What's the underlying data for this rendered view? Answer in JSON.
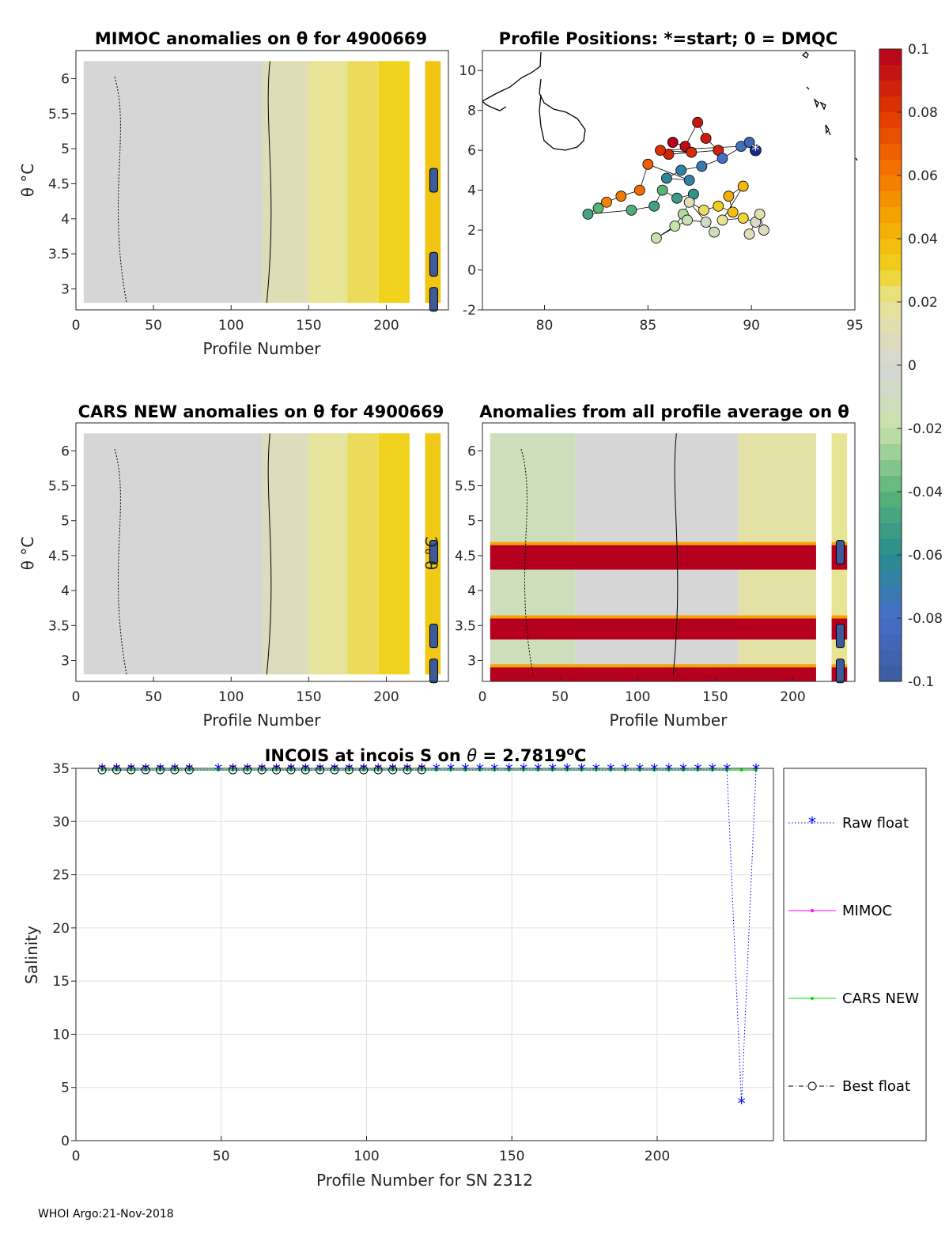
{
  "footer": "WHOI Argo:21-Nov-2018",
  "panels": {
    "mimoc": {
      "title": "MIMOC anomalies on θ  for 4900669",
      "xlabel": "Profile Number",
      "ylabel": "θ °C",
      "xticks": [
        "0",
        "50",
        "100",
        "150",
        "200"
      ],
      "yticks": [
        "6",
        "5.5",
        "5",
        "4.5",
        "4",
        "3.5",
        "3"
      ]
    },
    "positions": {
      "title": "Profile Positions: *=start; 0 = DMQC",
      "xticks": [
        "80",
        "85",
        "90",
        "95"
      ],
      "yticks": [
        "10",
        "8",
        "6",
        "4",
        "2",
        "0",
        "-2"
      ]
    },
    "cars": {
      "title": "CARS NEW anomalies on θ for 4900669",
      "xlabel": "Profile Number",
      "ylabel": "θ °C",
      "xticks": [
        "0",
        "50",
        "100",
        "150",
        "200"
      ],
      "yticks": [
        "6",
        "5.5",
        "5",
        "4.5",
        "4",
        "3.5",
        "3"
      ]
    },
    "allavg": {
      "title": "Anomalies from all profile average on θ",
      "xlabel": "Profile Number",
      "xticks": [
        "0",
        "50",
        "100",
        "150",
        "200"
      ],
      "yticks": [
        "6",
        "5.5",
        "5",
        "4.5",
        "4",
        "3.5",
        "3"
      ]
    }
  },
  "colorbar": {
    "ticks": [
      "0.1",
      "0.08",
      "0.06",
      "0.04",
      "0.02",
      "0",
      "-0.02",
      "-0.04",
      "-0.06",
      "-0.08",
      "-0.1"
    ]
  },
  "chart_data": [
    {
      "type": "heatmap",
      "title": "MIMOC anomalies on θ  for 4900669",
      "xlabel": "Profile Number",
      "ylabel": "θ °C",
      "xlim": [
        0,
        240
      ],
      "ylim": [
        2.7,
        6.4
      ],
      "profile_bands": [
        {
          "x0": 5,
          "x1": 120,
          "anomaly": 0.0
        },
        {
          "x0": 120,
          "x1": 150,
          "anomaly": 0.01
        },
        {
          "x0": 150,
          "x1": 175,
          "anomaly": 0.02
        },
        {
          "x0": 175,
          "x1": 195,
          "anomaly": 0.025
        },
        {
          "x0": 195,
          "x1": 215,
          "anomaly": 0.03
        },
        {
          "x0": 225,
          "x1": 235,
          "anomaly": 0.035
        }
      ]
    },
    {
      "type": "scatter",
      "title": "Profile Positions: *=start; 0 = DMQC",
      "xlim": [
        77,
        95
      ],
      "ylim": [
        -2,
        11
      ],
      "start": {
        "lon": 90.2,
        "lat": 6.0
      },
      "points": [
        {
          "lon": 86.2,
          "lat": 6.4,
          "t": 1.0
        },
        {
          "lon": 86.8,
          "lat": 6.2,
          "t": 0.98
        },
        {
          "lon": 87.4,
          "lat": 7.4,
          "t": 0.96
        },
        {
          "lon": 87.8,
          "lat": 6.6,
          "t": 0.95
        },
        {
          "lon": 88.4,
          "lat": 6.0,
          "t": 0.94
        },
        {
          "lon": 86.0,
          "lat": 5.8,
          "t": 0.93
        },
        {
          "lon": 87.1,
          "lat": 5.9,
          "t": 0.92
        },
        {
          "lon": 85.6,
          "lat": 6.0,
          "t": 0.91
        },
        {
          "lon": 89.5,
          "lat": 6.2,
          "t": 0.12
        },
        {
          "lon": 89.9,
          "lat": 6.4,
          "t": 0.06
        },
        {
          "lon": 88.6,
          "lat": 5.6,
          "t": 0.1
        },
        {
          "lon": 87.6,
          "lat": 5.2,
          "t": 0.14
        },
        {
          "lon": 86.6,
          "lat": 5.0,
          "t": 0.16
        },
        {
          "lon": 85.9,
          "lat": 4.6,
          "t": 0.18
        },
        {
          "lon": 87.0,
          "lat": 4.5,
          "t": 0.15
        },
        {
          "lon": 85.0,
          "lat": 5.3,
          "t": 0.84
        },
        {
          "lon": 84.6,
          "lat": 4.0,
          "t": 0.82
        },
        {
          "lon": 83.7,
          "lat": 3.7,
          "t": 0.8
        },
        {
          "lon": 83.0,
          "lat": 3.4,
          "t": 0.78
        },
        {
          "lon": 82.6,
          "lat": 3.1,
          "t": 0.3
        },
        {
          "lon": 82.1,
          "lat": 2.8,
          "t": 0.26
        },
        {
          "lon": 84.2,
          "lat": 3.0,
          "t": 0.28
        },
        {
          "lon": 85.3,
          "lat": 3.2,
          "t": 0.25
        },
        {
          "lon": 85.7,
          "lat": 4.0,
          "t": 0.3
        },
        {
          "lon": 86.4,
          "lat": 3.6,
          "t": 0.24
        },
        {
          "lon": 87.2,
          "lat": 3.8,
          "t": 0.22
        },
        {
          "lon": 86.7,
          "lat": 2.8,
          "t": 0.38
        },
        {
          "lon": 86.3,
          "lat": 2.2,
          "t": 0.4
        },
        {
          "lon": 85.4,
          "lat": 1.6,
          "t": 0.4
        },
        {
          "lon": 86.9,
          "lat": 2.5,
          "t": 0.42
        },
        {
          "lon": 87.8,
          "lat": 2.4,
          "t": 0.46
        },
        {
          "lon": 88.2,
          "lat": 1.9,
          "t": 0.44
        },
        {
          "lon": 87.0,
          "lat": 3.4,
          "t": 0.55
        },
        {
          "lon": 87.7,
          "lat": 3.0,
          "t": 0.62
        },
        {
          "lon": 88.4,
          "lat": 3.2,
          "t": 0.66
        },
        {
          "lon": 89.1,
          "lat": 2.9,
          "t": 0.68
        },
        {
          "lon": 88.9,
          "lat": 3.7,
          "t": 0.72
        },
        {
          "lon": 89.6,
          "lat": 4.2,
          "t": 0.7
        },
        {
          "lon": 88.6,
          "lat": 2.5,
          "t": 0.6
        },
        {
          "lon": 89.6,
          "lat": 2.6,
          "t": 0.64
        },
        {
          "lon": 90.2,
          "lat": 2.4,
          "t": 0.52
        },
        {
          "lon": 90.6,
          "lat": 2.0,
          "t": 0.54
        },
        {
          "lon": 90.4,
          "lat": 2.8,
          "t": 0.56
        },
        {
          "lon": 89.9,
          "lat": 1.8,
          "t": 0.55
        }
      ]
    },
    {
      "type": "heatmap",
      "title": "CARS NEW anomalies on θ for 4900669",
      "xlabel": "Profile Number",
      "ylabel": "θ °C",
      "xlim": [
        0,
        240
      ],
      "ylim": [
        2.7,
        6.4
      ],
      "profile_bands": [
        {
          "x0": 5,
          "x1": 120,
          "anomaly": 0.0
        },
        {
          "x0": 120,
          "x1": 150,
          "anomaly": 0.008
        },
        {
          "x0": 150,
          "x1": 175,
          "anomaly": 0.018
        },
        {
          "x0": 175,
          "x1": 195,
          "anomaly": 0.025
        },
        {
          "x0": 195,
          "x1": 215,
          "anomaly": 0.03
        },
        {
          "x0": 225,
          "x1": 235,
          "anomaly": 0.033
        }
      ]
    },
    {
      "type": "heatmap",
      "title": "Anomalies from all profile average on θ",
      "xlabel": "Profile Number",
      "xlim": [
        0,
        240
      ],
      "ylim": [
        2.7,
        6.4
      ],
      "profile_bands": [
        {
          "x0": 5,
          "x1": 60,
          "anomaly": -0.012
        },
        {
          "x0": 60,
          "x1": 165,
          "anomaly": 0.0
        },
        {
          "x0": 165,
          "x1": 215,
          "anomaly": 0.015
        },
        {
          "x0": 225,
          "x1": 235,
          "anomaly": 0.02
        }
      ],
      "theta_bands": [
        {
          "y0": 4.3,
          "y1": 4.65,
          "anomaly": 0.1
        },
        {
          "y0": 3.3,
          "y1": 3.6,
          "anomaly": 0.1
        },
        {
          "y0": 2.7,
          "y1": 2.9,
          "anomaly": 0.1
        }
      ]
    },
    {
      "type": "line",
      "title": "INCOIS at incois S on θ = 2.7819°C",
      "xlabel": "Profile Number for SN 2312",
      "ylabel": "Salinity",
      "xlim": [
        0,
        240
      ],
      "ylim": [
        0,
        35
      ],
      "xticks": [
        "0",
        "50",
        "100",
        "150",
        "200"
      ],
      "yticks": [
        "0",
        "5",
        "10",
        "15",
        "20",
        "25",
        "30",
        "35"
      ],
      "raw_x": [
        9,
        14,
        19,
        24,
        29,
        34,
        39,
        49,
        54,
        59,
        64,
        69,
        74,
        79,
        84,
        89,
        94,
        99,
        104,
        109,
        114,
        119,
        124,
        129,
        134,
        139,
        144,
        149,
        154,
        159,
        164,
        169,
        174,
        179,
        184,
        189,
        194,
        199,
        204,
        209,
        214,
        219,
        224,
        229,
        234
      ],
      "raw_y": [
        34.85,
        34.85,
        34.85,
        34.85,
        34.85,
        34.85,
        34.85,
        34.85,
        34.85,
        34.85,
        34.85,
        34.85,
        34.85,
        34.85,
        34.85,
        34.85,
        34.85,
        34.85,
        34.85,
        34.85,
        34.85,
        34.85,
        34.85,
        34.85,
        34.85,
        34.85,
        34.85,
        34.85,
        34.85,
        34.85,
        34.85,
        34.85,
        34.85,
        34.85,
        34.85,
        34.85,
        34.85,
        34.85,
        34.85,
        34.85,
        34.85,
        34.85,
        34.85,
        3.5,
        34.85
      ],
      "best_x": [
        9,
        14,
        19,
        24,
        29,
        34,
        39,
        54,
        59,
        64,
        69,
        74,
        79,
        84,
        89,
        94,
        99,
        104,
        109,
        114,
        119
      ],
      "best_y": 34.85,
      "mimoc_y": 34.86,
      "cars_y": 34.84,
      "series": [
        {
          "name": "Raw float",
          "color": "#0000ff"
        },
        {
          "name": "MIMOC",
          "color": "#ff00ff"
        },
        {
          "name": "CARS NEW",
          "color": "#00dd00"
        },
        {
          "name": "Best float",
          "color": "#000000"
        }
      ]
    }
  ]
}
